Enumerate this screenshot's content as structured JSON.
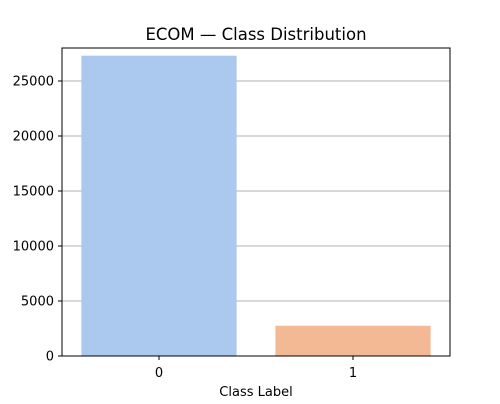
{
  "chart_data": {
    "type": "bar",
    "title": "ECOM — Class Distribution",
    "xlabel": "Class Label",
    "ylabel": "",
    "categories": [
      "0",
      "1"
    ],
    "values": [
      27300,
      2750
    ],
    "colors": [
      "#abc9ee",
      "#f2b994"
    ],
    "ylim": [
      0,
      28000
    ],
    "yticks": [
      0,
      5000,
      10000,
      15000,
      20000,
      25000
    ],
    "grid": "y",
    "grid_color": "#b0b0b0",
    "legend": "none"
  }
}
